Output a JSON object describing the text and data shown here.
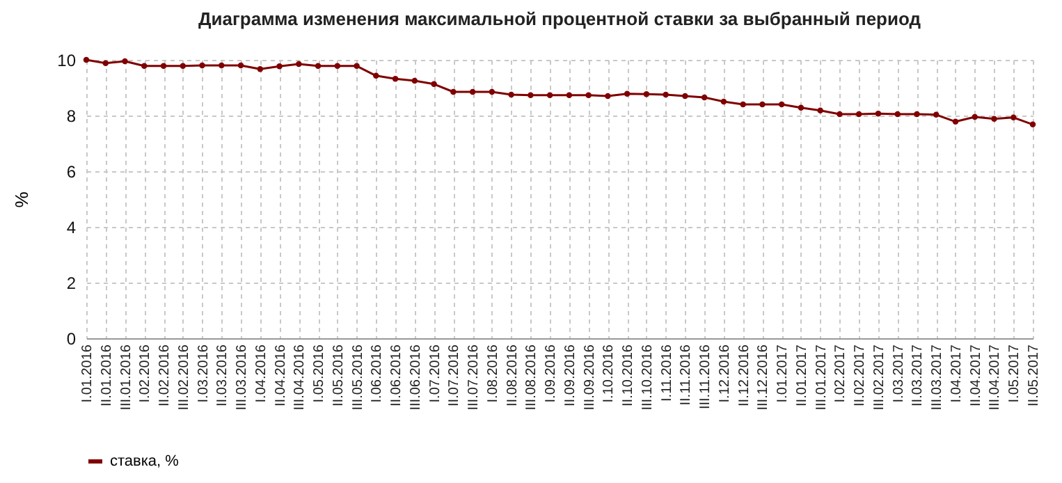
{
  "chart_data": {
    "type": "line",
    "title": "Диаграмма изменения максимальной процентной ставки за выбранный период",
    "ylabel": "%",
    "categories": [
      "I.01.2016",
      "II.01.2016",
      "III.01.2016",
      "I.02.2016",
      "II.02.2016",
      "III.02.2016",
      "I.03.2016",
      "II.03.2016",
      "III.03.2016",
      "I.04.2016",
      "II.04.2016",
      "III.04.2016",
      "I.05.2016",
      "II.05.2016",
      "III.05.2016",
      "I.06.2016",
      "II.06.2016",
      "III.06.2016",
      "I.07.2016",
      "II.07.2016",
      "III.07.2016",
      "I.08.2016",
      "II.08.2016",
      "III.08.2016",
      "I.09.2016",
      "II.09.2016",
      "III.09.2016",
      "I.10.2016",
      "II.10.2016",
      "III.10.2016",
      "I.11.2016",
      "II.11.2016",
      "III.11.2016",
      "I.12.2016",
      "II.12.2016",
      "III.12.2016",
      "I.01.2017",
      "II.01.2017",
      "III.01.2017",
      "I.02.2017",
      "II.02.2017",
      "III.02.2017",
      "I.03.2017",
      "II.03.2017",
      "III.03.2017",
      "I.04.2017",
      "II.04.2017",
      "III.04.2017",
      "I.05.2017",
      "II.05.2017"
    ],
    "series": [
      {
        "name": "ставка, %",
        "color": "#800000",
        "values": [
          10.0,
          9.88,
          9.95,
          9.78,
          9.78,
          9.78,
          9.8,
          9.8,
          9.8,
          9.67,
          9.77,
          9.85,
          9.78,
          9.78,
          9.78,
          9.43,
          9.32,
          9.25,
          9.13,
          8.85,
          8.85,
          8.85,
          8.75,
          8.73,
          8.73,
          8.73,
          8.73,
          8.7,
          8.78,
          8.77,
          8.75,
          8.7,
          8.65,
          8.5,
          8.4,
          8.4,
          8.4,
          8.28,
          8.18,
          8.05,
          8.05,
          8.07,
          8.05,
          8.05,
          8.03,
          7.78,
          7.95,
          7.88,
          7.93,
          7.68
        ]
      }
    ],
    "ylim": [
      0,
      10
    ],
    "yticks": [
      0,
      2,
      4,
      6,
      8,
      10
    ],
    "grid": true,
    "legend": "bottom",
    "marker": "circle",
    "line_style": "solid"
  }
}
